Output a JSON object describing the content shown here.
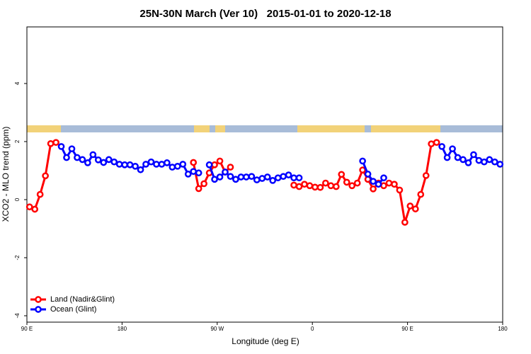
{
  "chart_data": {
    "type": "line",
    "title": "25N-30N March (Ver 10)   2015-01-01 to 2020-12-18",
    "x_label": "Longitude (deg E)",
    "y_label": "XCO2 - MLO trend (ppm)",
    "xlim": [
      90,
      540
    ],
    "xticks": [
      {
        "value": 90,
        "label": "90 E"
      },
      180,
      {
        "value": 270,
        "label": "90 W"
      },
      {
        "value": 360,
        "label": "0"
      },
      {
        "value": 450,
        "label": "90 E"
      },
      {
        "value": 540,
        "label": "180"
      }
    ],
    "ylim": [
      -4.22,
      5.95
    ],
    "yticks": [
      -4,
      -2,
      0,
      2,
      4
    ],
    "legend": "bottom-left",
    "x": [
      92.5,
      97.5,
      102.5,
      107.5,
      112.5,
      117.5,
      122.5,
      127.5,
      132.5,
      137.5,
      142.5,
      147.5,
      152.5,
      157.5,
      162.5,
      167.5,
      172.5,
      177.5,
      182.5,
      187.5,
      192.5,
      197.5,
      202.5,
      207.5,
      212.5,
      217.5,
      222.5,
      227.5,
      232.5,
      237.5,
      242.5,
      247.5,
      252.5,
      257.5,
      262.5,
      267.5,
      272.5,
      277.5,
      282.5,
      287.5,
      292.5,
      297.5,
      302.5,
      307.5,
      312.5,
      317.5,
      322.5,
      327.5,
      332.5,
      337.5,
      342.5,
      347.5,
      352.5,
      357.5,
      362.5,
      367.5,
      372.5,
      377.5,
      382.5,
      387.5,
      392.5,
      397.5,
      402.5,
      407.5,
      412.5,
      417.5,
      422.5,
      427.5,
      432.5,
      437.5,
      442.5,
      447.5,
      452.5,
      457.5,
      462.5,
      467.5,
      472.5,
      477.5,
      482.5,
      487.5,
      492.5,
      497.5,
      502.5,
      507.5,
      512.5,
      517.5,
      522.5,
      527.5,
      532.5,
      537.5
    ],
    "series": [
      {
        "name": "Land (Nadir&Glint)",
        "color": "#ff0000",
        "values": [
          -0.25,
          -0.33,
          0.18,
          0.82,
          1.93,
          1.97,
          null,
          null,
          null,
          null,
          null,
          null,
          null,
          null,
          null,
          null,
          null,
          null,
          null,
          null,
          null,
          null,
          null,
          null,
          null,
          null,
          null,
          null,
          null,
          null,
          null,
          1.28,
          0.38,
          0.55,
          0.92,
          1.2,
          1.33,
          0.95,
          1.12,
          null,
          null,
          null,
          null,
          null,
          null,
          null,
          null,
          null,
          null,
          null,
          0.5,
          0.45,
          0.53,
          0.48,
          0.43,
          0.42,
          0.57,
          0.48,
          0.45,
          0.87,
          0.6,
          0.48,
          0.57,
          1.02,
          0.7,
          0.37,
          0.57,
          0.48,
          0.57,
          0.53,
          0.33,
          -0.78,
          -0.22,
          -0.32,
          0.18,
          0.83,
          1.92,
          1.97,
          null,
          null,
          null,
          null,
          null,
          null,
          null,
          null,
          null,
          null,
          null,
          null
        ]
      },
      {
        "name": "Ocean (Glint)",
        "color": "#0000ff",
        "values": [
          null,
          null,
          null,
          null,
          null,
          null,
          1.83,
          1.45,
          1.75,
          1.45,
          1.38,
          1.27,
          1.55,
          1.37,
          1.28,
          1.38,
          1.3,
          1.22,
          1.2,
          1.2,
          1.15,
          1.03,
          1.22,
          1.3,
          1.22,
          1.22,
          1.27,
          1.12,
          1.15,
          1.22,
          0.88,
          0.97,
          0.92,
          null,
          1.2,
          0.7,
          0.78,
          0.95,
          0.8,
          0.7,
          0.78,
          0.78,
          0.8,
          0.68,
          0.73,
          0.78,
          0.66,
          0.75,
          0.8,
          0.85,
          0.75,
          0.75,
          null,
          null,
          null,
          null,
          null,
          null,
          null,
          null,
          null,
          null,
          null,
          1.33,
          0.88,
          0.63,
          0.53,
          0.75,
          null,
          null,
          null,
          null,
          null,
          null,
          null,
          null,
          null,
          null,
          1.83,
          1.45,
          1.75,
          1.45,
          1.38,
          1.27,
          1.55,
          1.35,
          1.3,
          1.38,
          1.3,
          1.22
        ]
      }
    ]
  }
}
